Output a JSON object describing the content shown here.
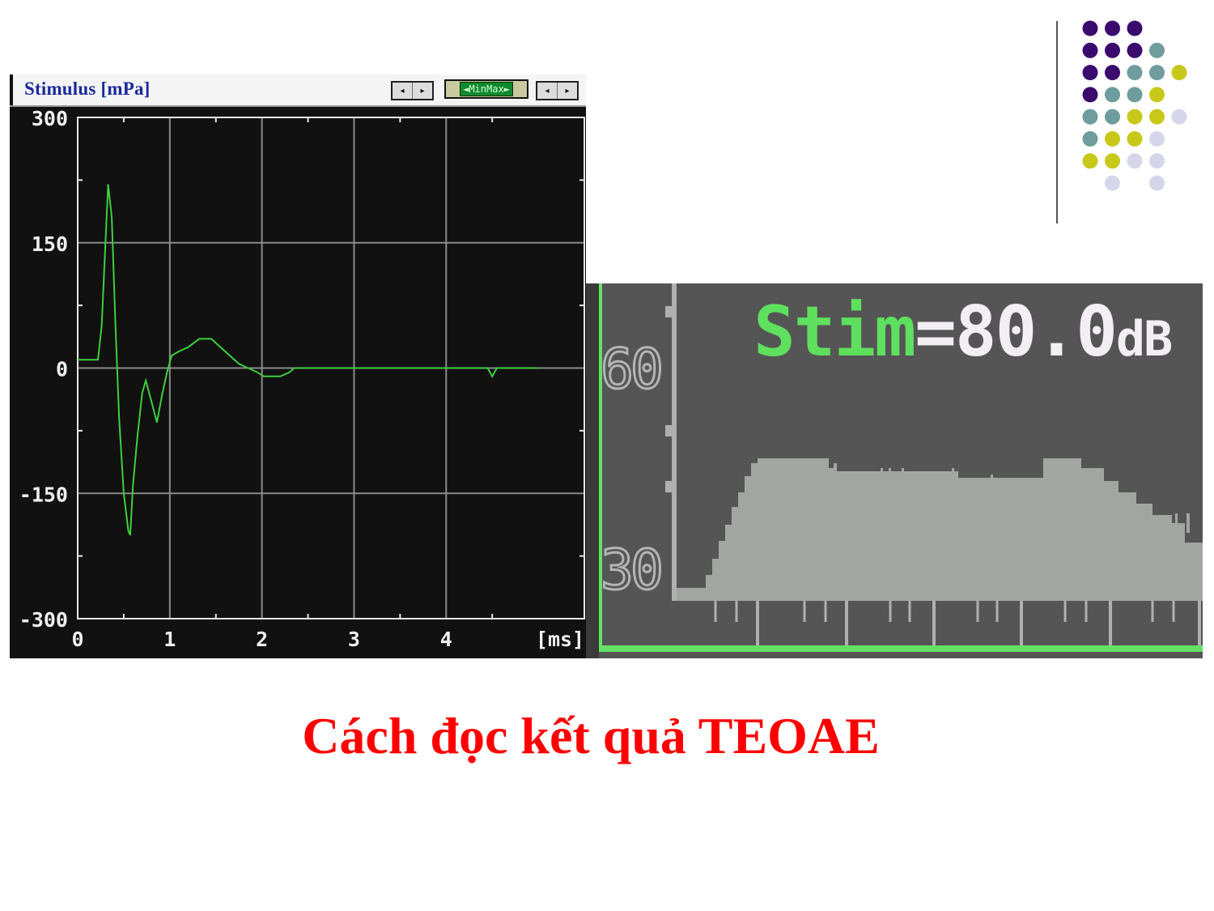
{
  "stimulus_window": {
    "title": "Stimulus [mPa]",
    "minmax_label": "◄MinMax►",
    "scroll_left": "◂",
    "scroll_right": "▸"
  },
  "spectrum_panel": {
    "readout_label": "Stim",
    "readout_value": "=80.0",
    "readout_unit": "dB",
    "y_tick_top": "60",
    "y_tick_bottom": "30"
  },
  "caption": "Cách đọc kết quả TEOAE",
  "colors": {
    "trace": "#3ecf3e",
    "plot_bg": "#111111",
    "spectrum_fill": "#a2a6a1",
    "caption": "#ff0000",
    "dots": [
      "#3b0a6e",
      "#6f9c9c",
      "#c8c81a",
      "#d6d6ea"
    ]
  },
  "chart_data": {
    "type": "line",
    "title": "Stimulus [mPa]",
    "xlabel": "[ms]",
    "ylabel": "",
    "xlim": [
      0,
      5.5
    ],
    "ylim": [
      -300,
      300
    ],
    "x_ticks": [
      "0",
      "1",
      "2",
      "3",
      "4",
      "[ms]"
    ],
    "y_ticks": [
      "300",
      "150",
      "0",
      "-150",
      "-300"
    ],
    "grid": true,
    "series": [
      {
        "x": [
          0,
          0.22,
          0.26,
          0.33,
          0.37,
          0.41,
          0.45,
          0.5,
          0.55,
          0.57,
          0.6,
          0.65,
          0.7,
          0.74,
          0.8,
          0.86,
          0.92,
          0.97,
          1.02,
          1.1,
          1.2,
          1.32,
          1.45,
          1.55,
          1.65,
          1.75,
          1.85,
          1.95,
          2.02,
          2.2,
          2.3,
          2.35,
          4.45,
          4.5,
          4.55,
          5.0
        ],
        "y": [
          10,
          10,
          50,
          220,
          180,
          50,
          -60,
          -150,
          -195,
          -200,
          -140,
          -80,
          -30,
          -15,
          -40,
          -65,
          -30,
          -5,
          15,
          20,
          25,
          35,
          35,
          25,
          15,
          5,
          0,
          -5,
          -10,
          -10,
          -5,
          0,
          0,
          -10,
          0,
          0
        ]
      }
    ]
  }
}
